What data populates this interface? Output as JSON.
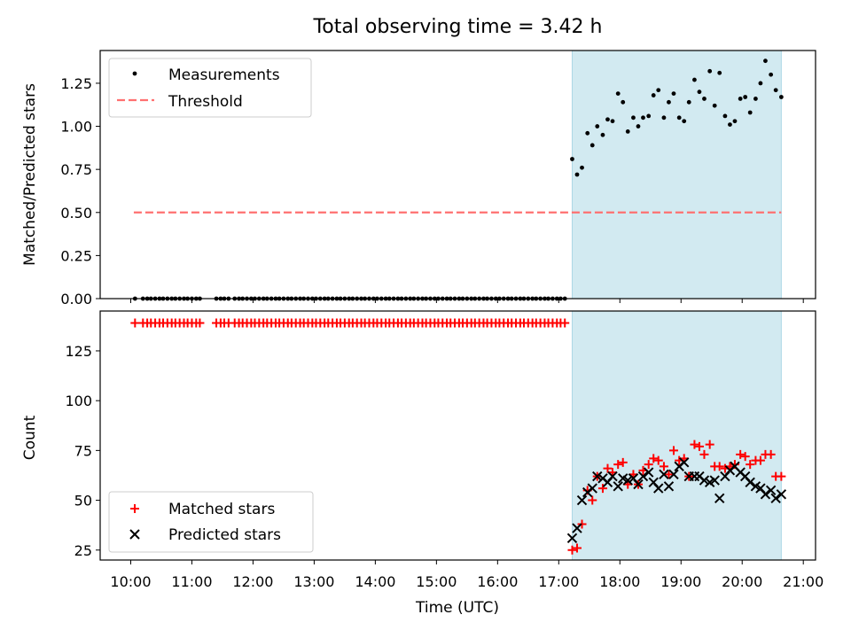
{
  "figure": {
    "title": "Total observing time = 3.42 h",
    "colors": {
      "highlight_fill": "#add8e6",
      "threshold": "#ff7070",
      "measurements": "#000000",
      "matched": "#ff0000",
      "predicted": "#000000"
    }
  },
  "chart_data": [
    {
      "type": "scatter",
      "title": "Total observing time = 3.42 h",
      "xlabel": "",
      "ylabel": "Matched/Predicted stars",
      "x_unit": "hours UTC",
      "xlim": [
        9.5,
        21.2
      ],
      "ylim": [
        0,
        1.44
      ],
      "yticks": [
        "0.00",
        "0.25",
        "0.50",
        "0.75",
        "1.00",
        "1.25"
      ],
      "ytick_values": [
        0,
        0.25,
        0.5,
        0.75,
        1.0,
        1.25
      ],
      "highlight_span": [
        17.22,
        20.64
      ],
      "threshold": {
        "name": "Threshold",
        "y": 0.5,
        "x_range": [
          10.05,
          20.64
        ]
      },
      "legend": {
        "position": "upper-left",
        "entries": [
          "Measurements",
          "Threshold"
        ]
      },
      "series": [
        {
          "name": "Measurements",
          "marker": "dot",
          "x": [
            10.07,
            10.2,
            10.27,
            10.33,
            10.4,
            10.47,
            10.53,
            10.6,
            10.67,
            10.73,
            10.8,
            10.87,
            10.93,
            11.0,
            11.07,
            11.13,
            11.4,
            11.47,
            11.53,
            11.6,
            11.7,
            11.77,
            11.83,
            11.9,
            11.97,
            12.03,
            12.1,
            12.17,
            12.23,
            12.3,
            12.37,
            12.43,
            12.5,
            12.57,
            12.63,
            12.7,
            12.77,
            12.83,
            12.9,
            12.97,
            13.03,
            13.1,
            13.17,
            13.23,
            13.3,
            13.37,
            13.43,
            13.5,
            13.57,
            13.63,
            13.7,
            13.77,
            13.83,
            13.9,
            13.97,
            14.03,
            14.1,
            14.17,
            14.23,
            14.3,
            14.37,
            14.43,
            14.5,
            14.57,
            14.63,
            14.7,
            14.77,
            14.83,
            14.9,
            14.97,
            15.03,
            15.1,
            15.17,
            15.23,
            15.3,
            15.37,
            15.43,
            15.5,
            15.57,
            15.63,
            15.7,
            15.77,
            15.83,
            15.9,
            15.97,
            16.03,
            16.1,
            16.17,
            16.23,
            16.3,
            16.37,
            16.43,
            16.5,
            16.57,
            16.63,
            16.7,
            16.77,
            16.83,
            16.9,
            16.97,
            17.03,
            17.1,
            17.22,
            17.3,
            17.38,
            17.47,
            17.55,
            17.63,
            17.72,
            17.8,
            17.88,
            17.97,
            18.05,
            18.13,
            18.22,
            18.3,
            18.38,
            18.47,
            18.55,
            18.63,
            18.72,
            18.8,
            18.88,
            18.97,
            19.05,
            19.13,
            19.22,
            19.3,
            19.38,
            19.47,
            19.55,
            19.63,
            19.72,
            19.8,
            19.88,
            19.97,
            20.05,
            20.13,
            20.22,
            20.3,
            20.38,
            20.47,
            20.55,
            20.64
          ],
          "y": [
            0,
            0,
            0,
            0,
            0,
            0,
            0,
            0,
            0,
            0,
            0,
            0,
            0,
            0,
            0,
            0,
            0,
            0,
            0,
            0,
            0,
            0,
            0,
            0,
            0,
            0,
            0,
            0,
            0,
            0,
            0,
            0,
            0,
            0,
            0,
            0,
            0,
            0,
            0,
            0,
            0,
            0,
            0,
            0,
            0,
            0,
            0,
            0,
            0,
            0,
            0,
            0,
            0,
            0,
            0,
            0,
            0,
            0,
            0,
            0,
            0,
            0,
            0,
            0,
            0,
            0,
            0,
            0,
            0,
            0,
            0,
            0,
            0,
            0,
            0,
            0,
            0,
            0,
            0,
            0,
            0,
            0,
            0,
            0,
            0,
            0,
            0,
            0,
            0,
            0,
            0,
            0,
            0,
            0,
            0,
            0,
            0,
            0,
            0,
            0,
            0,
            0,
            0.81,
            0.72,
            0.76,
            0.96,
            0.89,
            1.0,
            0.95,
            1.04,
            1.03,
            1.19,
            1.14,
            0.97,
            1.05,
            1.0,
            1.05,
            1.06,
            1.18,
            1.21,
            1.05,
            1.14,
            1.19,
            1.05,
            1.03,
            1.14,
            1.27,
            1.2,
            1.16,
            1.32,
            1.12,
            1.31,
            1.06,
            1.01,
            1.03,
            1.16,
            1.17,
            1.08,
            1.16,
            1.25,
            1.38,
            1.3,
            1.21,
            1.17
          ]
        }
      ]
    },
    {
      "type": "scatter",
      "title": "",
      "xlabel": "Time (UTC)",
      "ylabel": "Count",
      "x_unit": "hours UTC",
      "xlim": [
        9.5,
        21.2
      ],
      "ylim": [
        20,
        145
      ],
      "xticks": [
        "10:00",
        "11:00",
        "12:00",
        "13:00",
        "14:00",
        "15:00",
        "16:00",
        "17:00",
        "18:00",
        "19:00",
        "20:00",
        "21:00"
      ],
      "xtick_values": [
        10,
        11,
        12,
        13,
        14,
        15,
        16,
        17,
        18,
        19,
        20,
        21
      ],
      "yticks": [
        "25",
        "50",
        "75",
        "100",
        "125"
      ],
      "ytick_values": [
        25,
        50,
        75,
        100,
        125
      ],
      "highlight_span": [
        17.22,
        20.64
      ],
      "legend": {
        "position": "lower-left",
        "entries": [
          "Matched stars",
          "Predicted stars"
        ]
      },
      "series": [
        {
          "name": "Matched stars",
          "marker": "plus",
          "x_early": [
            10.07,
            10.2,
            10.27,
            10.33,
            10.4,
            10.47,
            10.53,
            10.6,
            10.67,
            10.73,
            10.8,
            10.87,
            10.93,
            11.0,
            11.07,
            11.13,
            11.4,
            11.47,
            11.53,
            11.6,
            11.7,
            11.77,
            11.83,
            11.9,
            11.97,
            12.03,
            12.1,
            12.17,
            12.23,
            12.3,
            12.37,
            12.43,
            12.5,
            12.57,
            12.63,
            12.7,
            12.77,
            12.83,
            12.9,
            12.97,
            13.03,
            13.1,
            13.17,
            13.23,
            13.3,
            13.37,
            13.43,
            13.5,
            13.57,
            13.63,
            13.7,
            13.77,
            13.83,
            13.9,
            13.97,
            14.03,
            14.1,
            14.17,
            14.23,
            14.3,
            14.37,
            14.43,
            14.5,
            14.57,
            14.63,
            14.7,
            14.77,
            14.83,
            14.9,
            14.97,
            15.03,
            15.1,
            15.17,
            15.23,
            15.3,
            15.37,
            15.43,
            15.5,
            15.57,
            15.63,
            15.7,
            15.77,
            15.83,
            15.9,
            15.97,
            16.03,
            16.1,
            16.17,
            16.23,
            16.3,
            16.37,
            16.43,
            16.5,
            16.57,
            16.63,
            16.7,
            16.77,
            16.83,
            16.9,
            16.97,
            17.03,
            17.1
          ],
          "y_early_constant": 139,
          "x": [
            17.22,
            17.3,
            17.38,
            17.47,
            17.55,
            17.63,
            17.72,
            17.8,
            17.88,
            17.97,
            18.05,
            18.13,
            18.22,
            18.3,
            18.38,
            18.47,
            18.55,
            18.63,
            18.72,
            18.8,
            18.88,
            18.97,
            19.05,
            19.13,
            19.22,
            19.3,
            19.38,
            19.47,
            19.55,
            19.63,
            19.72,
            19.8,
            19.88,
            19.97,
            20.05,
            20.13,
            20.22,
            20.3,
            20.38,
            20.47,
            20.55,
            20.64
          ],
          "y": [
            25,
            26,
            38,
            55,
            50,
            62,
            56,
            66,
            64,
            68,
            69,
            58,
            63,
            58,
            65,
            68,
            71,
            70,
            67,
            63,
            75,
            70,
            71,
            62,
            78,
            77,
            73,
            78,
            67,
            67,
            66,
            67,
            68,
            73,
            72,
            68,
            70,
            70,
            73,
            73,
            62,
            62
          ]
        },
        {
          "name": "Predicted stars",
          "marker": "x",
          "x": [
            17.22,
            17.3,
            17.38,
            17.47,
            17.55,
            17.63,
            17.72,
            17.8,
            17.88,
            17.97,
            18.05,
            18.13,
            18.22,
            18.3,
            18.38,
            18.47,
            18.55,
            18.63,
            18.72,
            18.8,
            18.88,
            18.97,
            19.05,
            19.13,
            19.22,
            19.3,
            19.38,
            19.47,
            19.55,
            19.63,
            19.72,
            19.8,
            19.88,
            19.97,
            20.05,
            20.13,
            20.22,
            20.3,
            20.38,
            20.47,
            20.55,
            20.64
          ],
          "y": [
            31,
            36,
            50,
            54,
            56,
            62,
            61,
            59,
            62,
            57,
            61,
            60,
            61,
            58,
            62,
            64,
            59,
            56,
            63,
            57,
            63,
            67,
            69,
            62,
            62,
            62,
            60,
            59,
            60,
            51,
            62,
            65,
            67,
            64,
            62,
            59,
            57,
            56,
            53,
            55,
            51,
            53
          ]
        }
      ]
    }
  ]
}
